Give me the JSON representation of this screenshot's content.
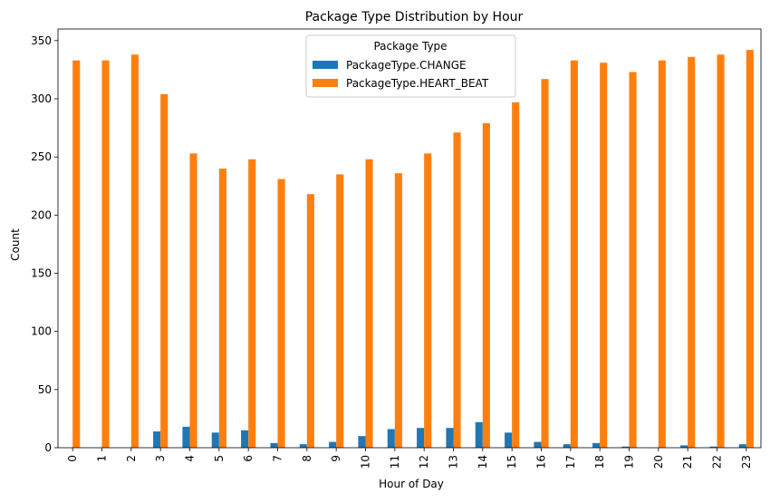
{
  "chart_data": {
    "type": "bar",
    "title": "Package Type Distribution by Hour",
    "xlabel": "Hour of Day",
    "ylabel": "Count",
    "ylim": [
      0,
      360
    ],
    "yticks": [
      0,
      50,
      100,
      150,
      200,
      250,
      300,
      350
    ],
    "categories": [
      "0",
      "1",
      "2",
      "3",
      "4",
      "5",
      "6",
      "7",
      "8",
      "9",
      "10",
      "11",
      "12",
      "13",
      "14",
      "15",
      "16",
      "17",
      "18",
      "19",
      "20",
      "21",
      "22",
      "23"
    ],
    "legend": {
      "title": "Package Type",
      "placement": "top-center"
    },
    "series": [
      {
        "name": "PackageType.CHANGE",
        "color": "#1f77b4",
        "values": [
          0,
          0,
          0,
          14,
          18,
          13,
          15,
          4,
          3,
          5,
          10,
          16,
          17,
          17,
          22,
          13,
          5,
          3,
          4,
          1,
          0,
          2,
          1,
          3
        ]
      },
      {
        "name": "PackageType.HEART_BEAT",
        "color": "#ff7f0e",
        "values": [
          333,
          333,
          338,
          304,
          253,
          240,
          248,
          231,
          218,
          235,
          248,
          236,
          253,
          271,
          279,
          297,
          317,
          333,
          331,
          323,
          333,
          336,
          338,
          342
        ]
      }
    ]
  }
}
